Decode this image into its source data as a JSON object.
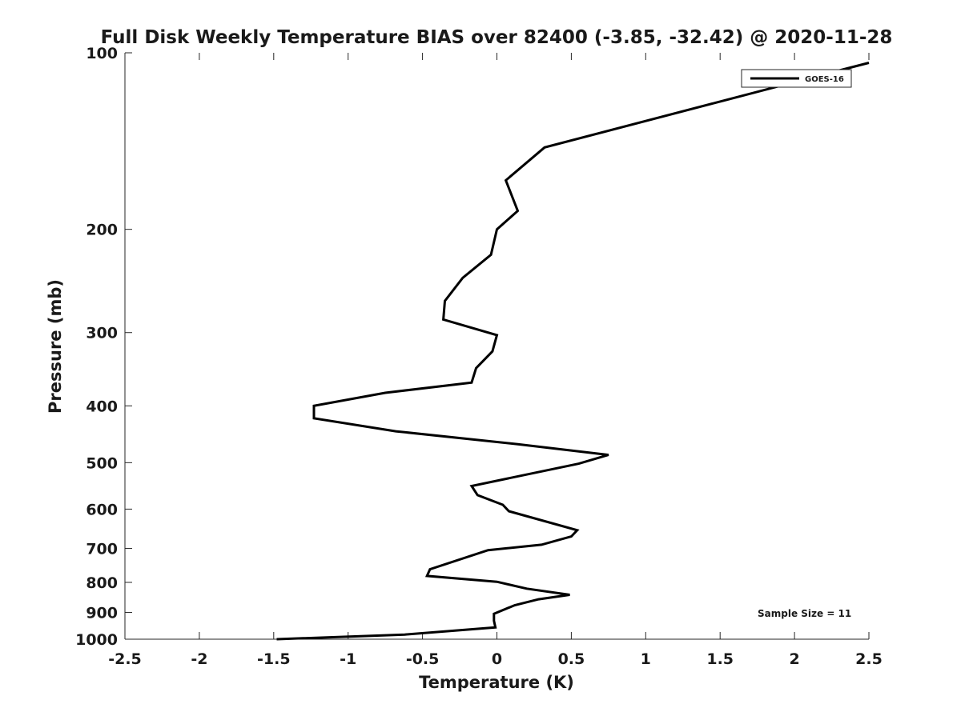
{
  "chart_data": {
    "type": "line",
    "title": "Full Disk Weekly Temperature BIAS over 82400 (-3.85, -32.42) @ 2020-11-28",
    "xlabel": "Temperature (K)",
    "ylabel": "Pressure (mb)",
    "xlim": [
      -2.5,
      2.5
    ],
    "ylim": [
      100,
      1000
    ],
    "yscale": "log",
    "yreversed": true,
    "xticks": [
      "-2.5",
      "-2",
      "-1.5",
      "-1",
      "-0.5",
      "0",
      "0.5",
      "1",
      "1.5",
      "2",
      "2.5"
    ],
    "yticks": [
      "100",
      "200",
      "300",
      "400",
      "500",
      "600",
      "700",
      "800",
      "900",
      "1000"
    ],
    "grid": false,
    "legend_position": "top-right",
    "annotation": "Sample Size = 11",
    "series": [
      {
        "name": "GOES-16",
        "color": "#000000",
        "points": [
          {
            "t": 2.5,
            "p": 104
          },
          {
            "t": 2.25,
            "p": 108
          },
          {
            "t": 0.32,
            "p": 145
          },
          {
            "t": 0.06,
            "p": 165
          },
          {
            "t": 0.14,
            "p": 186
          },
          {
            "t": 0.0,
            "p": 200
          },
          {
            "t": -0.04,
            "p": 221
          },
          {
            "t": -0.23,
            "p": 242
          },
          {
            "t": -0.35,
            "p": 265
          },
          {
            "t": -0.36,
            "p": 285
          },
          {
            "t": 0.0,
            "p": 303
          },
          {
            "t": -0.03,
            "p": 323
          },
          {
            "t": -0.14,
            "p": 345
          },
          {
            "t": -0.17,
            "p": 365
          },
          {
            "t": -0.75,
            "p": 380
          },
          {
            "t": -1.23,
            "p": 400
          },
          {
            "t": -1.23,
            "p": 420
          },
          {
            "t": -0.68,
            "p": 442
          },
          {
            "t": 0.14,
            "p": 465
          },
          {
            "t": 0.75,
            "p": 485
          },
          {
            "t": 0.55,
            "p": 502
          },
          {
            "t": -0.17,
            "p": 548
          },
          {
            "t": -0.13,
            "p": 568
          },
          {
            "t": 0.04,
            "p": 590
          },
          {
            "t": 0.08,
            "p": 605
          },
          {
            "t": 0.54,
            "p": 652
          },
          {
            "t": 0.5,
            "p": 668
          },
          {
            "t": 0.3,
            "p": 690
          },
          {
            "t": -0.06,
            "p": 705
          },
          {
            "t": -0.45,
            "p": 760
          },
          {
            "t": -0.47,
            "p": 780
          },
          {
            "t": 0.0,
            "p": 798
          },
          {
            "t": 0.2,
            "p": 820
          },
          {
            "t": 0.49,
            "p": 840
          },
          {
            "t": 0.28,
            "p": 855
          },
          {
            "t": 0.12,
            "p": 875
          },
          {
            "t": -0.02,
            "p": 905
          },
          {
            "t": -0.02,
            "p": 930
          },
          {
            "t": -0.01,
            "p": 955
          },
          {
            "t": -0.62,
            "p": 982
          },
          {
            "t": -1.48,
            "p": 1000
          }
        ]
      }
    ]
  }
}
